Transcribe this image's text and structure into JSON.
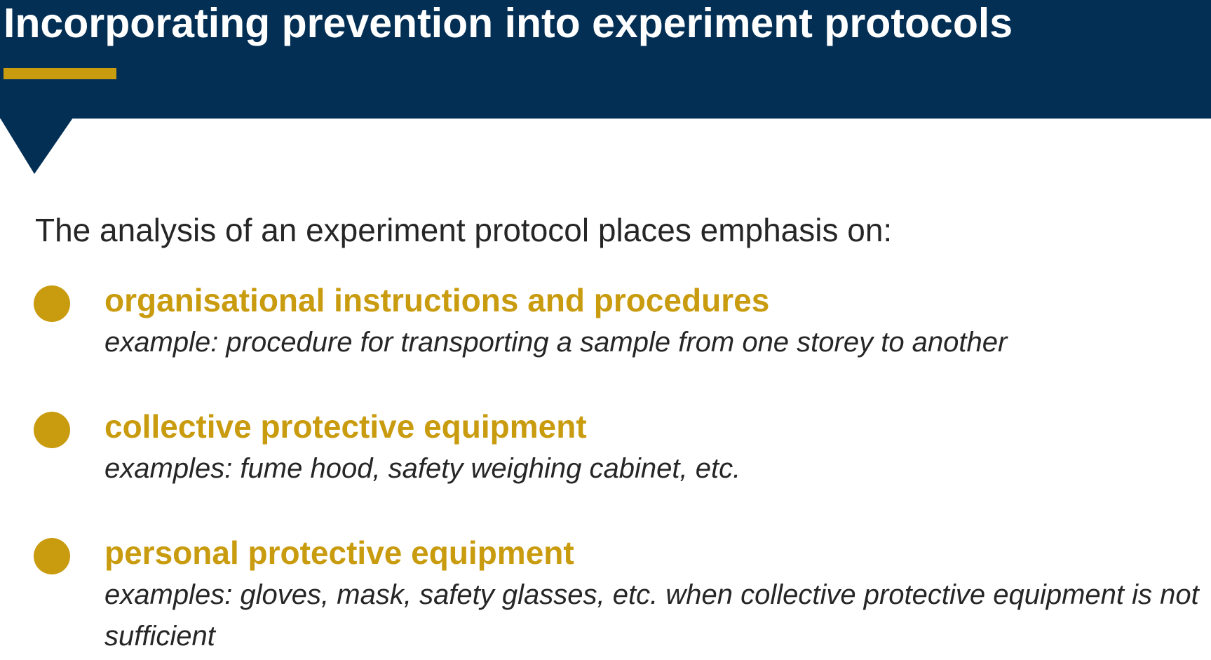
{
  "slide": {
    "title": "Incorporating prevention into experiment protocols",
    "intro": "The analysis of an experiment protocol places emphasis on:",
    "items": [
      {
        "title": "organisational instructions and procedures",
        "example": "example: procedure for transporting a sample from one storey to another"
      },
      {
        "title": "collective protective equipment",
        "example": "examples: fume hood, safety weighing cabinet, etc."
      },
      {
        "title": "personal protective equipment",
        "example": "examples: gloves, mask, safety glasses, etc. when collective protective equipment is not sufficient"
      }
    ]
  },
  "colors": {
    "header_background": "#032f55",
    "accent": "#c99b0e",
    "body_text": "#262626",
    "title_text": "#ffffff"
  }
}
